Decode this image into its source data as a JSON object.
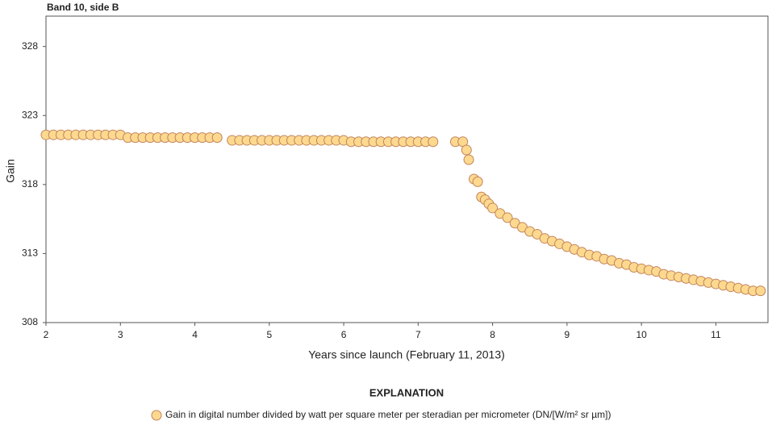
{
  "chart_data": {
    "type": "scatter",
    "title": "Band 10, side B",
    "xlabel": "Years since launch (February 11, 2013)",
    "ylabel": "Gain",
    "legend_title": "EXPLANATION",
    "xlim": [
      2,
      11.7
    ],
    "ylim": [
      308,
      330.2
    ],
    "xticks": [
      2,
      3,
      4,
      5,
      6,
      7,
      8,
      9,
      10,
      11
    ],
    "yticks": [
      308,
      313,
      318,
      323,
      328
    ],
    "series": [
      {
        "name": "Gain in digital number divided by watt per square meter per steradian per micrometer (DN/[W/m² sr µm])",
        "color": "#fcd98f",
        "x": [
          2.0,
          2.1,
          2.2,
          2.3,
          2.4,
          2.5,
          2.6,
          2.7,
          2.8,
          2.9,
          3.0,
          3.1,
          3.2,
          3.3,
          3.4,
          3.5,
          3.6,
          3.7,
          3.8,
          3.9,
          4.0,
          4.1,
          4.2,
          4.3,
          4.5,
          4.6,
          4.7,
          4.8,
          4.9,
          5.0,
          5.1,
          5.2,
          5.3,
          5.4,
          5.5,
          5.6,
          5.7,
          5.8,
          5.9,
          6.0,
          6.1,
          6.2,
          6.3,
          6.4,
          6.5,
          6.6,
          6.7,
          6.8,
          6.9,
          7.0,
          7.1,
          7.2,
          7.5,
          7.6,
          7.65,
          7.68,
          7.75,
          7.8,
          7.85,
          7.9,
          7.95,
          8.0,
          8.1,
          8.2,
          8.3,
          8.4,
          8.5,
          8.6,
          8.7,
          8.8,
          8.9,
          9.0,
          9.1,
          9.2,
          9.3,
          9.4,
          9.5,
          9.6,
          9.7,
          9.8,
          9.9,
          10.0,
          10.1,
          10.2,
          10.3,
          10.4,
          10.5,
          10.6,
          10.7,
          10.8,
          10.9,
          11.0,
          11.1,
          11.2,
          11.3,
          11.4,
          11.5,
          11.6
        ],
        "values": [
          321.6,
          321.6,
          321.6,
          321.6,
          321.6,
          321.6,
          321.6,
          321.6,
          321.6,
          321.6,
          321.6,
          321.4,
          321.4,
          321.4,
          321.4,
          321.4,
          321.4,
          321.4,
          321.4,
          321.4,
          321.4,
          321.4,
          321.4,
          321.4,
          321.2,
          321.2,
          321.2,
          321.2,
          321.2,
          321.2,
          321.2,
          321.2,
          321.2,
          321.2,
          321.2,
          321.2,
          321.2,
          321.2,
          321.2,
          321.2,
          321.1,
          321.1,
          321.1,
          321.1,
          321.1,
          321.1,
          321.1,
          321.1,
          321.1,
          321.1,
          321.1,
          321.1,
          321.1,
          321.1,
          320.5,
          319.8,
          318.4,
          318.2,
          317.1,
          316.9,
          316.6,
          316.3,
          315.9,
          315.6,
          315.2,
          314.9,
          314.6,
          314.4,
          314.1,
          313.9,
          313.7,
          313.5,
          313.3,
          313.1,
          312.9,
          312.8,
          312.6,
          312.5,
          312.3,
          312.2,
          312.0,
          311.9,
          311.8,
          311.7,
          311.5,
          311.4,
          311.3,
          311.2,
          311.1,
          311.0,
          310.9,
          310.8,
          310.7,
          310.6,
          310.5,
          310.4,
          310.3,
          310.3
        ]
      }
    ]
  }
}
